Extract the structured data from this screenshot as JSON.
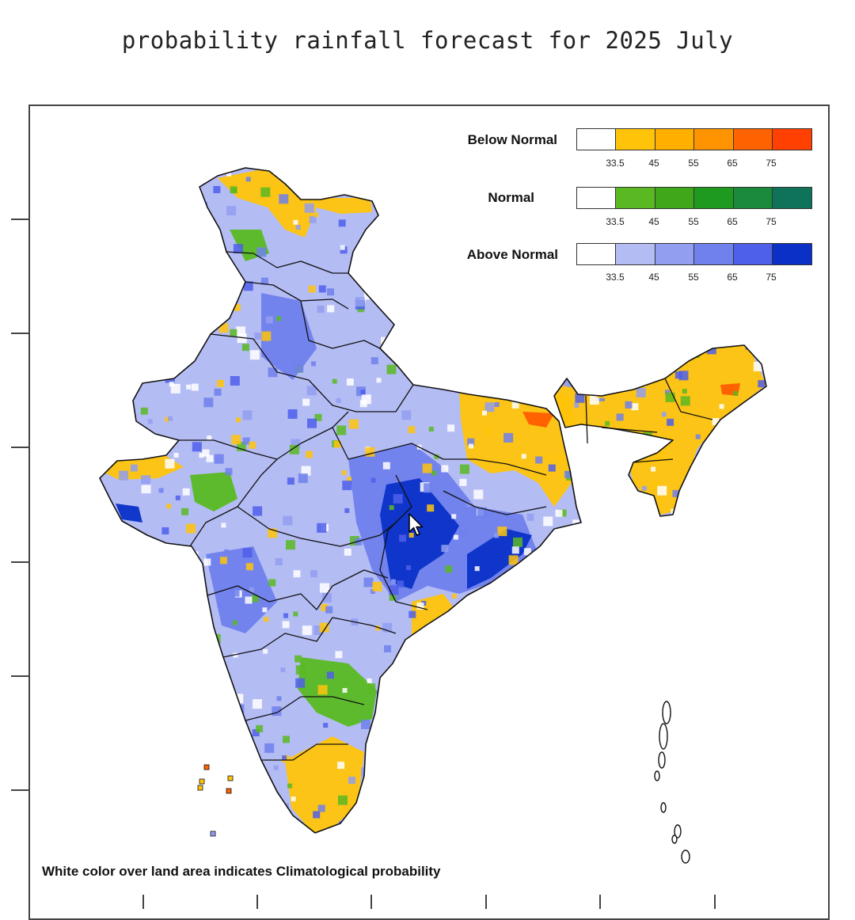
{
  "title": "probability rainfall forecast for 2025 July",
  "legend": [
    {
      "label": "Below Normal",
      "colors": [
        "#ffffff",
        "#ffc40a",
        "#ffaf00",
        "#ff9400",
        "#ff6200",
        "#ff4000"
      ],
      "ticks": [
        "33.5",
        "45",
        "55",
        "65",
        "75"
      ]
    },
    {
      "label": "Normal",
      "colors": [
        "#ffffff",
        "#5ab922",
        "#3ea81a",
        "#1e9a1e",
        "#1a8a3c",
        "#0e7358"
      ],
      "ticks": [
        "33.5",
        "45",
        "55",
        "65",
        "75"
      ]
    },
    {
      "label": "Above Normal",
      "colors": [
        "#ffffff",
        "#b4bcf4",
        "#929ff0",
        "#7080ec",
        "#4e5fea",
        "#0a30c8"
      ],
      "ticks": [
        "33.5",
        "45",
        "55",
        "65",
        "75"
      ]
    }
  ],
  "footnote": "White color over land area indicates Climatological probability",
  "colors": {
    "above_light": "#b4bcf4",
    "above_mid": "#7080ec",
    "above_dark": "#0a30c8",
    "below": "#ffc40a",
    "below_hot": "#ff6200",
    "normal": "#5ab922",
    "outline": "#111111"
  }
}
